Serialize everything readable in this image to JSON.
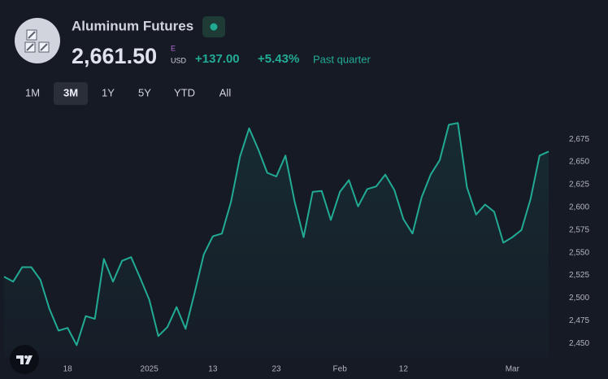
{
  "header": {
    "title": "Aluminum Futures",
    "price": "2,661.50",
    "exchange_badge": "E",
    "currency": "USD",
    "change": "+137.00",
    "change_percent": "+5.43%",
    "period": "Past quarter"
  },
  "range_buttons": [
    "1M",
    "3M",
    "1Y",
    "5Y",
    "YTD",
    "All"
  ],
  "selected_range": "3M",
  "chart_data": {
    "type": "line",
    "categories": [
      null,
      null,
      null,
      null,
      null,
      null,
      null,
      "18",
      null,
      null,
      null,
      null,
      null,
      null,
      null,
      null,
      "2025",
      null,
      null,
      null,
      null,
      null,
      null,
      "13",
      null,
      null,
      null,
      null,
      null,
      null,
      "23",
      null,
      null,
      null,
      null,
      null,
      null,
      "Feb",
      null,
      null,
      null,
      null,
      null,
      null,
      "12",
      null,
      null,
      null,
      null,
      null,
      null,
      null,
      null,
      null,
      null,
      null,
      "Mar",
      null,
      null,
      null,
      null
    ],
    "values": [
      2523.5,
      2518,
      2534,
      2534,
      2520,
      2488,
      2464,
      2467,
      2448,
      2480,
      2477,
      2543,
      2518,
      2541,
      2545,
      2522,
      2498,
      2458,
      2468,
      2490,
      2466,
      2506,
      2548,
      2568,
      2571,
      2606,
      2656,
      2687,
      2664,
      2638,
      2634,
      2657,
      2607,
      2567,
      2617,
      2618,
      2586,
      2617,
      2630,
      2601,
      2620,
      2623,
      2636,
      2619,
      2587,
      2571,
      2611,
      2636,
      2652,
      2691,
      2693,
      2622,
      2592,
      2603,
      2595,
      2561,
      2567,
      2575,
      2609,
      2657,
      2661.5
    ],
    "color": "#22ab94",
    "ylim": [
      2434,
      2703
    ],
    "yticks": [
      {
        "value": 2450,
        "label": "2,450"
      },
      {
        "value": 2475,
        "label": "2,475"
      },
      {
        "value": 2500,
        "label": "2,500"
      },
      {
        "value": 2525,
        "label": "2,525"
      },
      {
        "value": 2550,
        "label": "2,550"
      },
      {
        "value": 2575,
        "label": "2,575"
      },
      {
        "value": 2600,
        "label": "2,600"
      },
      {
        "value": 2625,
        "label": "2,625"
      },
      {
        "value": 2650,
        "label": "2,650"
      },
      {
        "value": 2675,
        "label": "2,675"
      }
    ],
    "grid": false
  }
}
